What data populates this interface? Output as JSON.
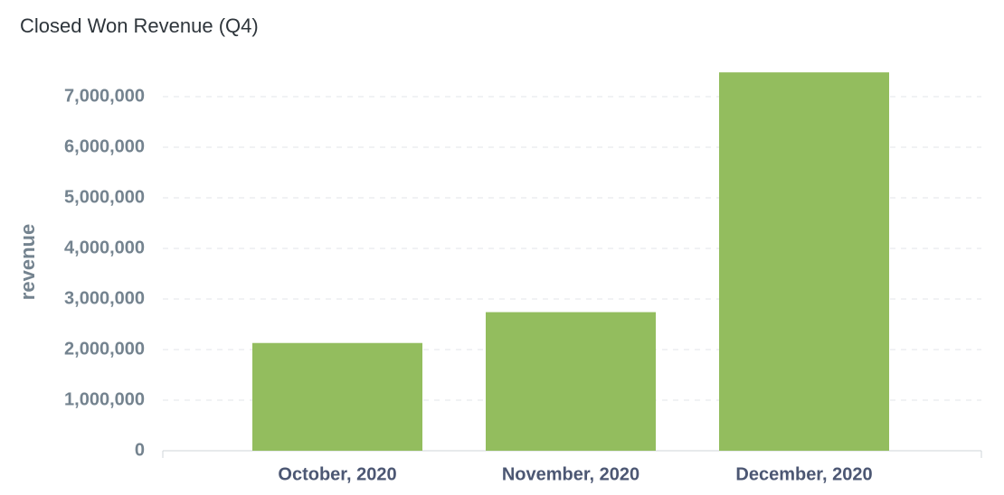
{
  "chart_data": {
    "type": "bar",
    "title": "Closed Won Revenue (Q4)",
    "y_label": "revenue",
    "categories": [
      "October, 2020",
      "November, 2020",
      "December, 2020"
    ],
    "values": [
      2130000,
      2740000,
      7480000
    ],
    "color": "#93bd5e",
    "ylim": [
      0,
      7500000
    ],
    "yticks": [
      0,
      {
        "value": 1000000,
        "label": "1,000,000"
      },
      {
        "value": 2000000,
        "label": "2,000,000"
      },
      {
        "value": 3000000,
        "label": "3,000,000"
      },
      {
        "value": 4000000,
        "label": "4,000,000"
      },
      {
        "value": 5000000,
        "label": "5,000,000"
      },
      {
        "value": 6000000,
        "label": "6,000,000"
      },
      {
        "value": 7000000,
        "label": "7,000,000"
      }
    ],
    "grid": true
  }
}
